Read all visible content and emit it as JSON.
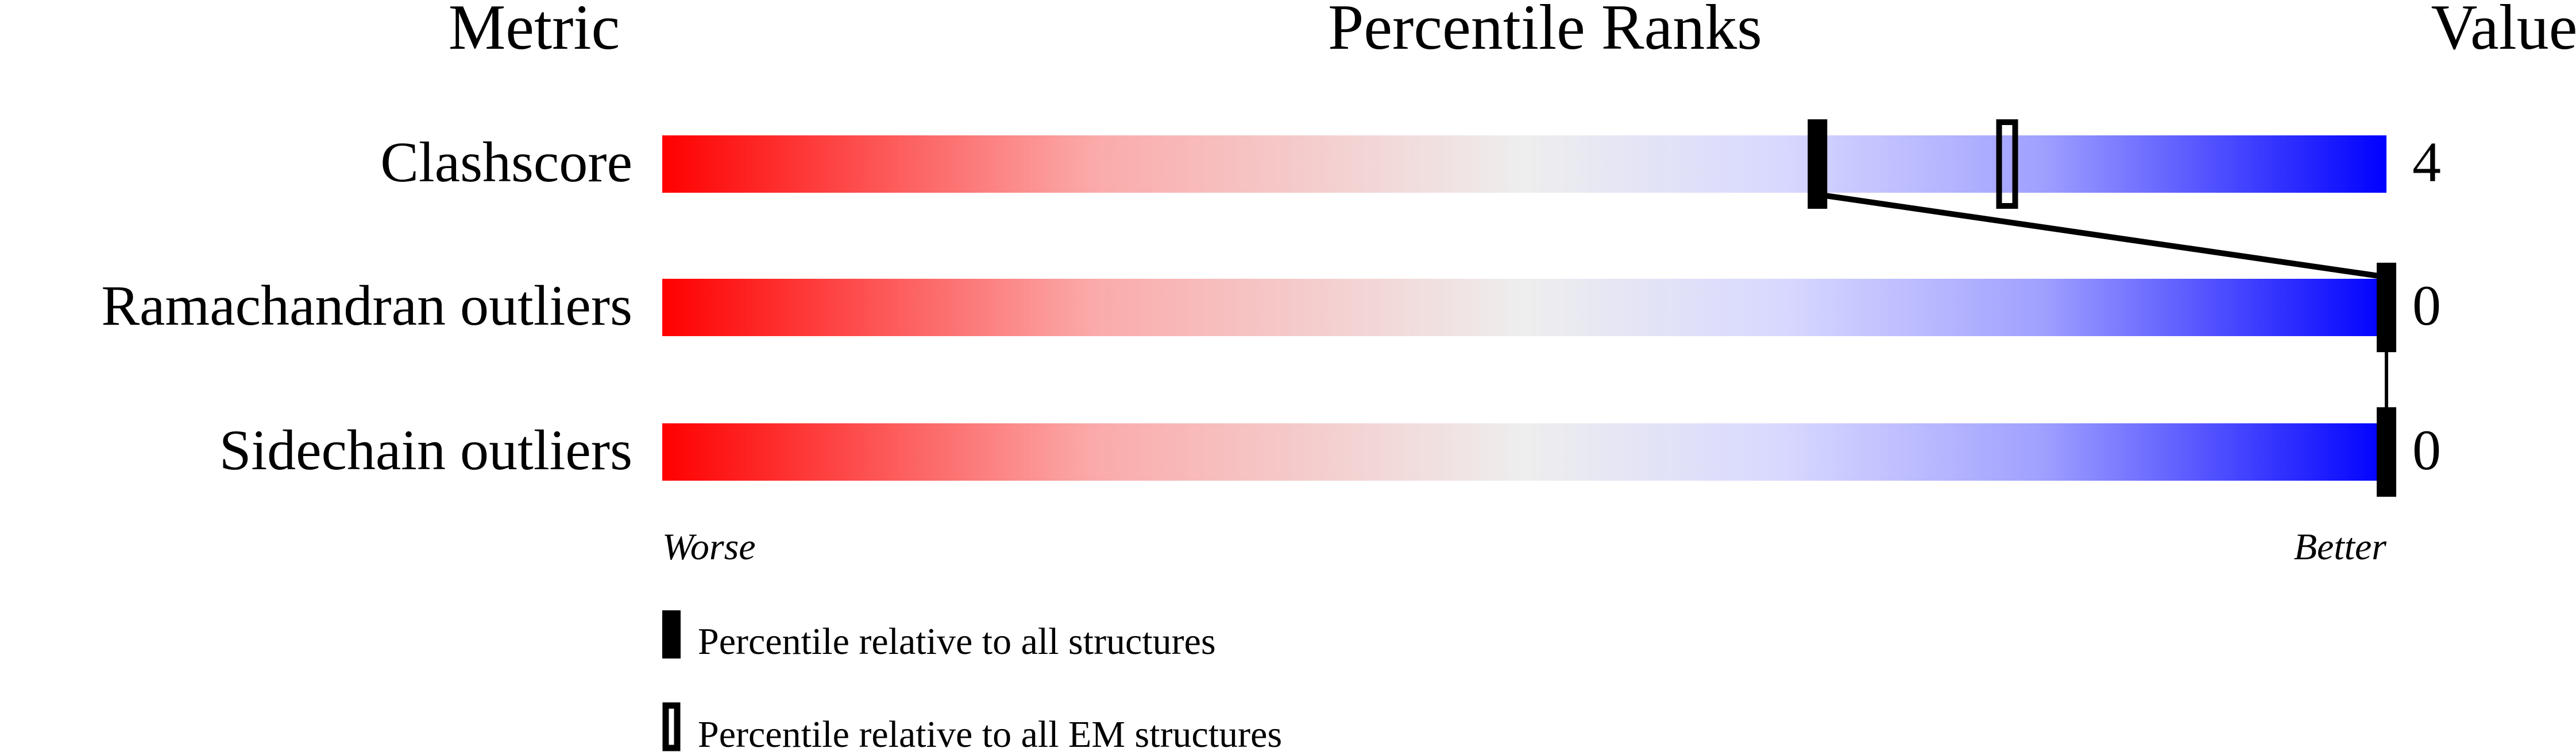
{
  "chart_data": {
    "type": "percentile-slider",
    "headers": {
      "metric": "Metric",
      "ranks": "Percentile Ranks",
      "value": "Value"
    },
    "xlim": [
      0,
      100
    ],
    "axis_labels": {
      "worse": "Worse",
      "better": "Better"
    },
    "gradient_colors": [
      "#ff0000",
      "#eeeeee",
      "#0000ff"
    ],
    "rows": [
      {
        "metric": "Clashscore",
        "value": "4",
        "percentile_all": 67,
        "percentile_em": 78
      },
      {
        "metric": "Ramachandran outliers",
        "value": "0",
        "percentile_all": 100,
        "percentile_em": null
      },
      {
        "metric": "Sidechain outliers",
        "value": "0",
        "percentile_all": 100,
        "percentile_em": null
      }
    ],
    "legend": [
      {
        "marker": "filled",
        "label": "Percentile relative to all structures"
      },
      {
        "marker": "hollow",
        "label": "Percentile relative to all EM structures"
      }
    ]
  }
}
